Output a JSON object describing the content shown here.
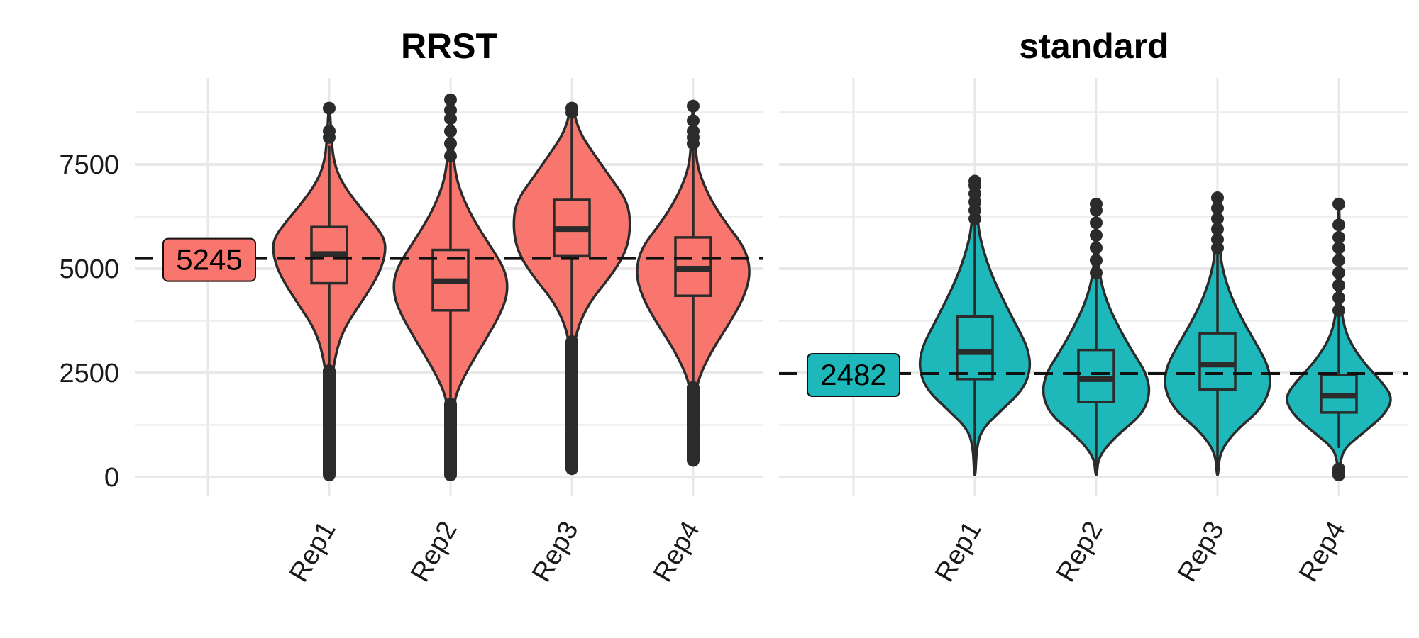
{
  "chart_data": {
    "type": "violin",
    "y_ticks": [
      0,
      2500,
      5000,
      7500
    ],
    "ylim": [
      -450,
      9450
    ],
    "grid": true,
    "legend": "none",
    "panels": [
      {
        "title": "RRST",
        "fill": "#F8766D",
        "median_line": 5245,
        "median_label": "5245",
        "categories": [
          "Rep1",
          "Rep2",
          "Rep3",
          "Rep4"
        ],
        "groups": [
          {
            "name": "Rep1",
            "min": 50,
            "max": 8850,
            "q1": 4650,
            "median": 5350,
            "q3": 6000,
            "whisker_low": 2650,
            "whisker_high": 7950,
            "outliers_high": [
              8150,
              8300,
              8850
            ],
            "outliers_low_range": [
              50,
              2550
            ],
            "density": [
              [
                50,
                0.01
              ],
              [
                1000,
                0.02
              ],
              [
                2000,
                0.04
              ],
              [
                2700,
                0.07
              ],
              [
                3500,
                0.22
              ],
              [
                4200,
                0.55
              ],
              [
                4800,
                0.82
              ],
              [
                5300,
                0.95
              ],
              [
                5700,
                0.95
              ],
              [
                6100,
                0.75
              ],
              [
                6600,
                0.45
              ],
              [
                7100,
                0.2
              ],
              [
                7600,
                0.07
              ],
              [
                8300,
                0.03
              ],
              [
                8850,
                0.01
              ]
            ]
          },
          {
            "name": "Rep2",
            "min": 50,
            "max": 9100,
            "q1": 4000,
            "median": 4700,
            "q3": 5450,
            "whisker_low": 1850,
            "whisker_high": 7600,
            "outliers_high": [
              7700,
              8000,
              8300,
              8600,
              8800,
              9050
            ],
            "outliers_low_range": [
              50,
              1750
            ],
            "density": [
              [
                50,
                0.01
              ],
              [
                800,
                0.02
              ],
              [
                1500,
                0.04
              ],
              [
                2000,
                0.09
              ],
              [
                2600,
                0.3
              ],
              [
                3300,
                0.6
              ],
              [
                4000,
                0.88
              ],
              [
                4500,
                0.98
              ],
              [
                5000,
                0.92
              ],
              [
                5600,
                0.65
              ],
              [
                6200,
                0.38
              ],
              [
                6800,
                0.18
              ],
              [
                7300,
                0.08
              ],
              [
                8000,
                0.03
              ],
              [
                9100,
                0.01
              ]
            ]
          },
          {
            "name": "Rep3",
            "min": 200,
            "max": 8850,
            "q1": 5300,
            "median": 5950,
            "q3": 6650,
            "whisker_low": 3350,
            "whisker_high": 8700,
            "outliers_high": [
              8750,
              8850
            ],
            "outliers_low_range": [
              200,
              3250
            ],
            "density": [
              [
                200,
                0.01
              ],
              [
                1500,
                0.02
              ],
              [
                2800,
                0.03
              ],
              [
                3500,
                0.07
              ],
              [
                4200,
                0.3
              ],
              [
                4800,
                0.65
              ],
              [
                5400,
                0.92
              ],
              [
                6000,
                1.0
              ],
              [
                6600,
                0.95
              ],
              [
                7200,
                0.65
              ],
              [
                7800,
                0.35
              ],
              [
                8300,
                0.12
              ],
              [
                8850,
                0.02
              ]
            ]
          },
          {
            "name": "Rep4",
            "min": 400,
            "max": 8900,
            "q1": 4350,
            "median": 5000,
            "q3": 5750,
            "whisker_low": 2300,
            "whisker_high": 7900,
            "outliers_high": [
              8000,
              8150,
              8300,
              8550,
              8900
            ],
            "outliers_low_range": [
              400,
              2150
            ],
            "density": [
              [
                400,
                0.01
              ],
              [
                1100,
                0.02
              ],
              [
                1800,
                0.04
              ],
              [
                2300,
                0.07
              ],
              [
                3000,
                0.3
              ],
              [
                3700,
                0.62
              ],
              [
                4300,
                0.86
              ],
              [
                4900,
                0.98
              ],
              [
                5500,
                0.88
              ],
              [
                6100,
                0.55
              ],
              [
                6700,
                0.28
              ],
              [
                7300,
                0.1
              ],
              [
                7800,
                0.04
              ],
              [
                8900,
                0.01
              ]
            ]
          }
        ]
      },
      {
        "title": "standard",
        "fill": "#1FB8BA",
        "median_line": 2482,
        "median_label": "2482",
        "categories": [
          "Rep1",
          "Rep2",
          "Rep3",
          "Rep4"
        ],
        "groups": [
          {
            "name": "Rep1",
            "min": 50,
            "max": 7100,
            "q1": 2350,
            "median": 3000,
            "q3": 3850,
            "whisker_low": 50,
            "whisker_high": 6050,
            "outliers_high": [
              6200,
              6400,
              6600,
              6800,
              7000,
              7100
            ],
            "outliers_low_range": null,
            "density": [
              [
                50,
                0.01
              ],
              [
                700,
                0.03
              ],
              [
                1150,
                0.12
              ],
              [
                1600,
                0.45
              ],
              [
                2100,
                0.82
              ],
              [
                2600,
                0.95
              ],
              [
                3100,
                0.9
              ],
              [
                3600,
                0.72
              ],
              [
                4200,
                0.5
              ],
              [
                4800,
                0.3
              ],
              [
                5400,
                0.15
              ],
              [
                6000,
                0.05
              ],
              [
                7100,
                0.01
              ]
            ]
          },
          {
            "name": "Rep2",
            "min": 50,
            "max": 6550,
            "q1": 1800,
            "median": 2350,
            "q3": 3050,
            "whisker_low": 50,
            "whisker_high": 4800,
            "outliers_high": [
              4900,
              5200,
              5500,
              5800,
              6100,
              6400,
              6550
            ],
            "outliers_low_range": null,
            "density": [
              [
                50,
                0.01
              ],
              [
                500,
                0.04
              ],
              [
                1000,
                0.35
              ],
              [
                1500,
                0.78
              ],
              [
                2000,
                0.92
              ],
              [
                2500,
                0.85
              ],
              [
                3000,
                0.62
              ],
              [
                3600,
                0.38
              ],
              [
                4200,
                0.18
              ],
              [
                4800,
                0.06
              ],
              [
                5500,
                0.02
              ],
              [
                6550,
                0.01
              ]
            ]
          },
          {
            "name": "Rep3",
            "min": 50,
            "max": 6700,
            "q1": 2100,
            "median": 2700,
            "q3": 3450,
            "whisker_low": 50,
            "whisker_high": 5400,
            "outliers_high": [
              5500,
              5700,
              5950,
              6200,
              6450,
              6700
            ],
            "outliers_low_range": null,
            "density": [
              [
                50,
                0.01
              ],
              [
                600,
                0.04
              ],
              [
                1100,
                0.3
              ],
              [
                1600,
                0.72
              ],
              [
                2100,
                0.9
              ],
              [
                2600,
                0.88
              ],
              [
                3100,
                0.7
              ],
              [
                3700,
                0.45
              ],
              [
                4300,
                0.24
              ],
              [
                4900,
                0.1
              ],
              [
                5400,
                0.04
              ],
              [
                6700,
                0.01
              ]
            ]
          },
          {
            "name": "Rep4",
            "min": 50,
            "max": 6550,
            "q1": 1550,
            "median": 1950,
            "q3": 2450,
            "whisker_low": 700,
            "whisker_high": 3900,
            "outliers_high": [
              4000,
              4300,
              4600,
              4900,
              5200,
              5500,
              5750,
              6050,
              6550
            ],
            "outliers_low_range": [
              50,
              200
            ],
            "density": [
              [
                50,
                0.01
              ],
              [
                400,
                0.03
              ],
              [
                700,
                0.1
              ],
              [
                1100,
                0.45
              ],
              [
                1500,
                0.78
              ],
              [
                1900,
                0.92
              ],
              [
                2300,
                0.72
              ],
              [
                2700,
                0.45
              ],
              [
                3200,
                0.2
              ],
              [
                3700,
                0.07
              ],
              [
                4400,
                0.02
              ],
              [
                6550,
                0.01
              ]
            ]
          }
        ]
      }
    ]
  }
}
